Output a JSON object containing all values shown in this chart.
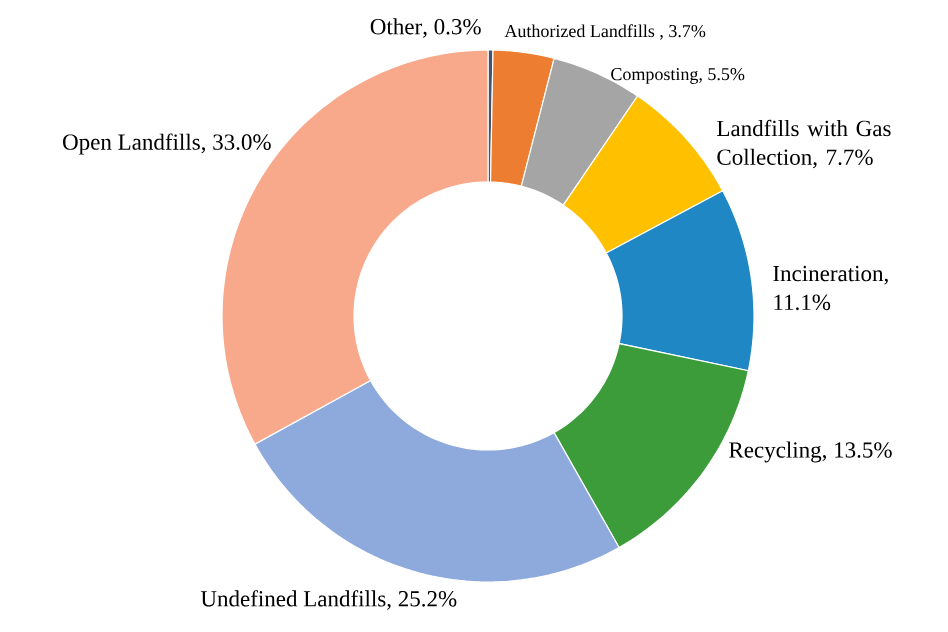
{
  "chart_data": {
    "type": "donut",
    "categories": [
      "Other",
      "Authorized Landfills",
      "Composting",
      "Landfills with Gas Collection",
      "Incineration",
      "Recycling",
      "Undefined Landfills",
      "Open Landfills"
    ],
    "values": [
      0.3,
      3.7,
      5.5,
      7.7,
      11.1,
      13.5,
      25.2,
      33.0
    ],
    "value_labels": [
      ", 0.3%",
      " , 3.7%",
      ", 5.5%",
      ", 7.7%",
      ", 11.1%",
      ", 13.5%",
      ", 25.2%",
      ", 33.0%"
    ],
    "colors": [
      "#44546a",
      "#ed7d31",
      "#a5a5a5",
      "#ffc000",
      "#1f87c4",
      "#3c9c3a",
      "#8eaadc",
      "#f9a98b"
    ]
  }
}
